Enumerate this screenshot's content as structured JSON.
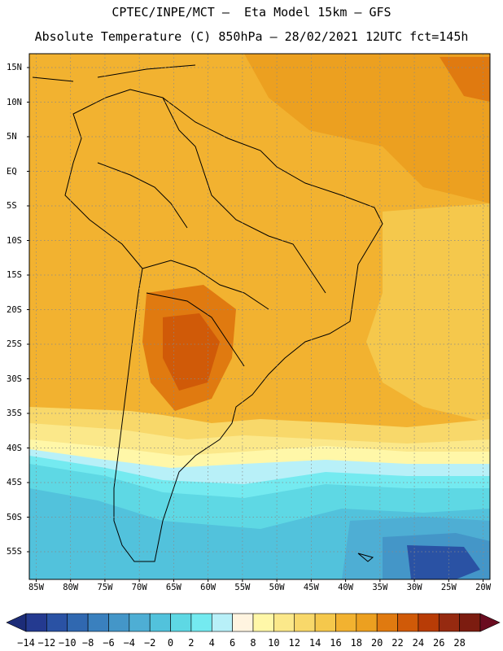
{
  "header": {
    "line1": "CPTEC/INPE/MCT –  Eta Model 15km – GFS",
    "line2": "Absolute Temperature (C) 850hPa – 28/02/2021 12UTC fct=145h"
  },
  "map": {
    "lon_range": [
      -86,
      -19
    ],
    "lat_range": [
      -59,
      17
    ],
    "lat_ticks": [
      "15N",
      "10N",
      "5N",
      "EQ",
      "5S",
      "10S",
      "15S",
      "20S",
      "25S",
      "30S",
      "35S",
      "40S",
      "45S",
      "50S",
      "55S"
    ],
    "lat_values": [
      15,
      10,
      5,
      0,
      -5,
      -10,
      -15,
      -20,
      -25,
      -30,
      -35,
      -40,
      -45,
      -50,
      -55
    ],
    "lon_ticks": [
      "85W",
      "80W",
      "75W",
      "70W",
      "65W",
      "60W",
      "55W",
      "50W",
      "45W",
      "40W",
      "35W",
      "30W",
      "25W",
      "20W"
    ],
    "lon_values": [
      -85,
      -80,
      -75,
      -70,
      -65,
      -60,
      -55,
      -50,
      -45,
      -40,
      -35,
      -30,
      -25,
      -20
    ]
  },
  "colorbar": {
    "labels": [
      "-14",
      "-12",
      "-10",
      "-8",
      "-6",
      "-4",
      "-2",
      "0",
      "2",
      "4",
      "6",
      "8",
      "10",
      "12",
      "14",
      "16",
      "18",
      "20",
      "22",
      "24",
      "26",
      "28"
    ],
    "colors": [
      "#243a90",
      "#2a52a4",
      "#3068b0",
      "#3a80be",
      "#4496c8",
      "#4eaed4",
      "#52c2dc",
      "#5ed8e4",
      "#74eaf0",
      "#b8f0f8",
      "#fff4e0",
      "#fff7a8",
      "#fbe88a",
      "#f8d86a",
      "#f5c84c",
      "#f2b230",
      "#eca020",
      "#e07a10",
      "#d05a08",
      "#b83c06",
      "#962a10",
      "#7c1c10"
    ],
    "under_color": "#1c2c78",
    "over_color": "#6a0c20"
  }
}
